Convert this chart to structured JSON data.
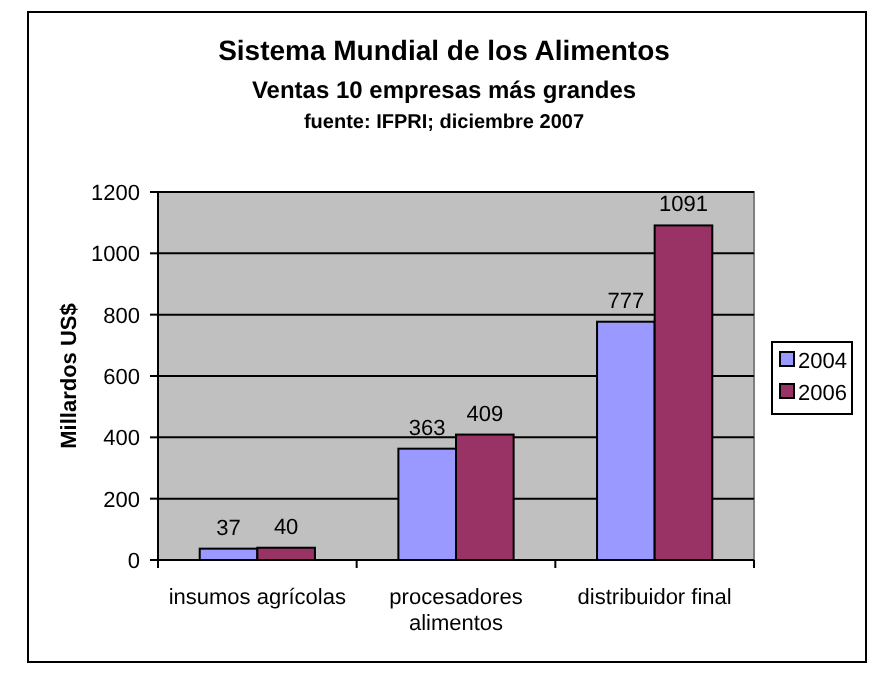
{
  "chart_data": {
    "type": "bar",
    "title": "Sistema Mundial de los Alimentos",
    "subtitle": "Ventas 10 empresas más grandes",
    "annotations": [
      "fuente: IFPRI; diciembre 2007"
    ],
    "ylabel": "Millardos US$",
    "categories": [
      "insumos agrícolas",
      "procesadores alimentos",
      "distribuidor final"
    ],
    "series": [
      {
        "name": "2004",
        "color": "#9999ff",
        "values": [
          37,
          363,
          777
        ]
      },
      {
        "name": "2006",
        "color": "#993366",
        "values": [
          40,
          409,
          1091
        ]
      }
    ],
    "ylim": [
      0,
      1200
    ],
    "yticks": [
      0,
      200,
      400,
      600,
      800,
      1000,
      1200
    ],
    "grid": "y",
    "legend": "right",
    "data_labels": true
  }
}
